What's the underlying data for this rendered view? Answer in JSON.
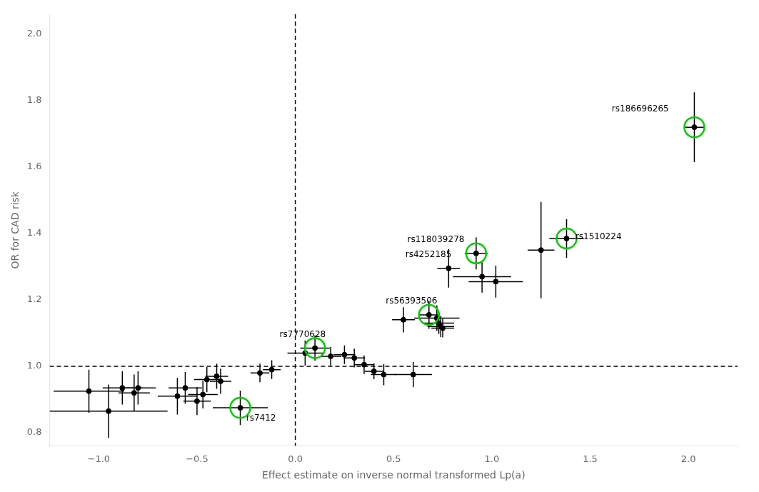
{
  "chart_data": {
    "type": "scatter",
    "xlabel": "Effect estimate on inverse normal transformed Lp(a)",
    "ylabel": "OR for CAD risk",
    "xlim": [
      -1.25,
      2.25
    ],
    "ylim": [
      0.76,
      2.06
    ],
    "xticks": [
      {
        "value": -1.0,
        "label": "−1.0"
      },
      {
        "value": -0.5,
        "label": "−0.5"
      },
      {
        "value": 0.0,
        "label": "0.0"
      },
      0.5,
      {
        "value": 1.0,
        "label": "1.0"
      },
      1.5,
      {
        "value": 2.0,
        "label": "2.0"
      }
    ],
    "yticks": [
      0.8,
      {
        "value": 1.0,
        "label": "1.0"
      },
      1.2,
      1.4,
      1.6,
      1.8,
      {
        "value": 2.0,
        "label": "2.0"
      }
    ],
    "grid": false,
    "series": [
      {
        "color": "#000000",
        "marker": "circle",
        "x": [
          -1.05,
          -0.88,
          -0.82,
          -0.8,
          -0.95,
          -0.6,
          -0.56,
          -0.5,
          -0.47,
          -0.45,
          -0.4,
          -0.38,
          -0.28,
          -0.18,
          -0.12,
          0.05,
          0.1,
          0.18,
          0.25,
          0.3,
          0.35,
          0.4,
          0.45,
          0.55,
          0.6,
          0.68,
          0.72,
          0.73,
          0.74,
          0.75,
          0.78,
          0.92,
          0.95,
          1.02,
          1.25,
          1.38,
          2.03
        ],
        "values": [
          0.925,
          0.935,
          0.92,
          0.935,
          0.865,
          0.91,
          0.935,
          0.895,
          0.915,
          0.96,
          0.97,
          0.955,
          0.875,
          0.98,
          0.99,
          1.04,
          1.055,
          1.03,
          1.035,
          1.025,
          1.005,
          0.985,
          0.975,
          1.14,
          0.975,
          1.155,
          1.145,
          1.13,
          1.12,
          1.115,
          1.295,
          1.34,
          1.27,
          1.255,
          1.35,
          1.385,
          1.72
        ],
        "xerr": [
          0.18,
          0.1,
          0.08,
          0.09,
          0.3,
          0.1,
          0.085,
          0.07,
          0.075,
          0.065,
          0.058,
          0.055,
          0.14,
          0.048,
          0.045,
          0.09,
          0.075,
          0.055,
          0.055,
          0.055,
          0.048,
          0.048,
          0.065,
          0.058,
          0.095,
          0.048,
          0.115,
          0.078,
          0.068,
          0.058,
          0.058,
          0.058,
          0.148,
          0.138,
          0.068,
          0.088,
          0.052
        ],
        "yerr_lo": [
          0.065,
          0.05,
          0.055,
          0.05,
          0.08,
          0.055,
          0.048,
          0.042,
          0.042,
          0.038,
          0.038,
          0.038,
          0.052,
          0.028,
          0.028,
          0.038,
          0.038,
          0.028,
          0.028,
          0.028,
          0.028,
          0.024,
          0.032,
          0.038,
          0.038,
          0.042,
          0.038,
          0.033,
          0.032,
          0.028,
          0.058,
          0.048,
          0.048,
          0.048,
          0.145,
          0.058,
          0.105
        ],
        "yerr_hi": [
          0.065,
          0.05,
          0.055,
          0.05,
          0.08,
          0.055,
          0.048,
          0.042,
          0.042,
          0.038,
          0.038,
          0.038,
          0.052,
          0.028,
          0.028,
          0.038,
          0.038,
          0.028,
          0.028,
          0.028,
          0.028,
          0.024,
          0.032,
          0.038,
          0.038,
          0.042,
          0.038,
          0.033,
          0.032,
          0.028,
          0.058,
          0.048,
          0.048,
          0.048,
          0.145,
          0.058,
          0.105
        ]
      },
      {
        "color": "#00cc00",
        "marker": "open_circle",
        "x": [
          -0.28,
          0.1,
          0.68,
          0.92,
          1.38,
          2.03
        ],
        "values": [
          0.875,
          1.055,
          1.155,
          1.34,
          1.385,
          1.72
        ]
      }
    ],
    "lines": [
      {
        "axis": "x",
        "value": 0.0,
        "color": "#000000",
        "line_style": "dashed"
      },
      {
        "axis": "y",
        "value": 1.0,
        "color": "#000000",
        "line_style": "dashed"
      }
    ],
    "annotations": [
      {
        "x": -0.25,
        "y": 0.83,
        "text": "rs7412"
      },
      {
        "x": -0.08,
        "y": 1.083,
        "text": "rs7770628"
      },
      {
        "x": 0.46,
        "y": 1.183,
        "text": "rs56393506"
      },
      {
        "x": 0.56,
        "y": 1.323,
        "text": "rs4252185"
      },
      {
        "x": 0.57,
        "y": 1.368,
        "text": "rs118039278"
      },
      {
        "x": 1.425,
        "y": 1.377,
        "text": "rs1510224"
      },
      {
        "x": 1.61,
        "y": 1.762,
        "text": "rs186696265"
      }
    ]
  }
}
